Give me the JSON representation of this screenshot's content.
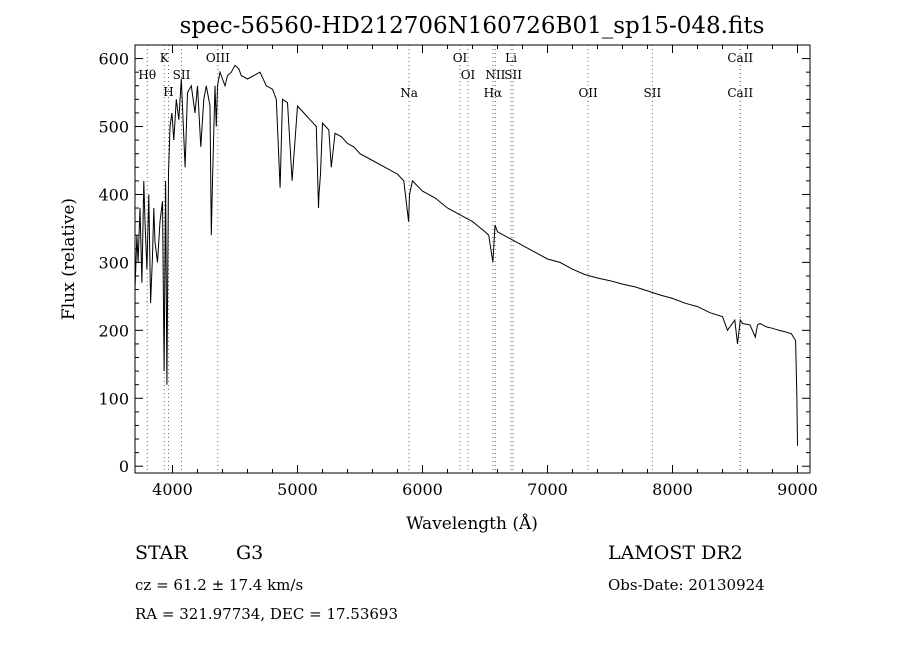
{
  "chart_data": {
    "type": "line",
    "title": "spec-56560-HD212706N160726B01_sp15-048.fits",
    "xlabel": "Wavelength (Å)",
    "ylabel": "Flux (relative)",
    "xlim": [
      3700,
      9100
    ],
    "ylim": [
      -10,
      620
    ],
    "x_ticks": [
      4000,
      5000,
      6000,
      7000,
      8000,
      9000
    ],
    "y_ticks": [
      0,
      100,
      200,
      300,
      400,
      500,
      600
    ],
    "grid": false,
    "series": [
      {
        "x": [
          3700,
          3715,
          3725,
          3740,
          3755,
          3770,
          3780,
          3795,
          3810,
          3825,
          3840,
          3850,
          3860,
          3880,
          3900,
          3920,
          3933,
          3945,
          3955,
          3968,
          3980,
          3995,
          4010,
          4030,
          4050,
          4070,
          4101,
          4120,
          4150,
          4180,
          4200,
          4226,
          4250,
          4270,
          4300,
          4310,
          4320,
          4340,
          4350,
          4360,
          4380,
          4400,
          4420,
          4440,
          4470,
          4500,
          4530,
          4550,
          4600,
          4650,
          4700,
          4750,
          4800,
          4830,
          4861,
          4880,
          4920,
          4957,
          5000,
          5050,
          5100,
          5150,
          5168,
          5172,
          5184,
          5200,
          5250,
          5270,
          5300,
          5350,
          5400,
          5450,
          5500,
          5600,
          5700,
          5800,
          5850,
          5889,
          5896,
          5920,
          6000,
          6100,
          6200,
          6300,
          6400,
          6500,
          6530,
          6563,
          6580,
          6600,
          6700,
          6800,
          6900,
          7000,
          7100,
          7200,
          7300,
          7400,
          7500,
          7600,
          7700,
          7800,
          7900,
          8000,
          8100,
          8200,
          8300,
          8400,
          8440,
          8498,
          8520,
          8542,
          8560,
          8620,
          8662,
          8680,
          8700,
          8750,
          8800,
          8850,
          8900,
          8950,
          8985,
          8995,
          9000
        ],
        "y": [
          260,
          340,
          300,
          380,
          270,
          420,
          360,
          290,
          400,
          240,
          310,
          380,
          330,
          300,
          360,
          390,
          140,
          420,
          120,
          430,
          500,
          520,
          480,
          540,
          510,
          570,
          440,
          550,
          560,
          520,
          560,
          470,
          540,
          560,
          530,
          340,
          420,
          560,
          500,
          560,
          580,
          570,
          560,
          575,
          580,
          590,
          585,
          575,
          570,
          575,
          580,
          560,
          555,
          540,
          410,
          540,
          535,
          420,
          530,
          520,
          510,
          500,
          380,
          400,
          430,
          505,
          495,
          440,
          490,
          485,
          475,
          470,
          460,
          450,
          440,
          430,
          420,
          360,
          400,
          420,
          405,
          395,
          380,
          370,
          360,
          345,
          340,
          300,
          355,
          345,
          335,
          325,
          315,
          305,
          300,
          290,
          282,
          277,
          273,
          268,
          264,
          258,
          252,
          247,
          240,
          235,
          226,
          220,
          200,
          215,
          180,
          215,
          210,
          208,
          190,
          208,
          210,
          205,
          203,
          200,
          198,
          195,
          185,
          100,
          30
        ]
      }
    ],
    "line_markers": [
      {
        "label": "Hθ",
        "x": 3798,
        "tier": "top"
      },
      {
        "label": "K",
        "x": 3934,
        "tier": "upper"
      },
      {
        "label": "H",
        "x": 3968,
        "tier": "lower"
      },
      {
        "label": "SII",
        "x": 4072,
        "tier": "top"
      },
      {
        "label": "OIII",
        "x": 4363,
        "tier": "upper"
      },
      {
        "label": "Na",
        "x": 5893,
        "tier": "bottom"
      },
      {
        "label": "OI",
        "x": 6300,
        "tier": "upper"
      },
      {
        "label": "OI",
        "x": 6364,
        "tier": "top"
      },
      {
        "label": "Li",
        "x": 6708,
        "tier": "upper"
      },
      {
        "label": "NII",
        "x": 6583,
        "tier": "top"
      },
      {
        "label": "SII",
        "x": 6725,
        "tier": "top"
      },
      {
        "label": "Hα",
        "x": 6563,
        "tier": "bottom"
      },
      {
        "label": "OII",
        "x": 7325,
        "tier": "bottom"
      },
      {
        "label": "SII",
        "x": 7839,
        "tier": "bottom"
      },
      {
        "label": "CaII",
        "x": 8542,
        "tier": "upper"
      },
      {
        "label": "CaII",
        "x": 8542,
        "tier": "bottom"
      }
    ]
  },
  "info": {
    "class_label": "STAR",
    "subclass": "G3",
    "survey": "LAMOST DR2",
    "cz": "cz = 61.2 ± 17.4 km/s",
    "obs_date": "Obs-Date: 20130924",
    "coords": "RA = 321.97734, DEC =  17.53693"
  },
  "colors": {
    "spectrum": "#000000",
    "marker_line": "#d33333",
    "axis": "#000000"
  }
}
